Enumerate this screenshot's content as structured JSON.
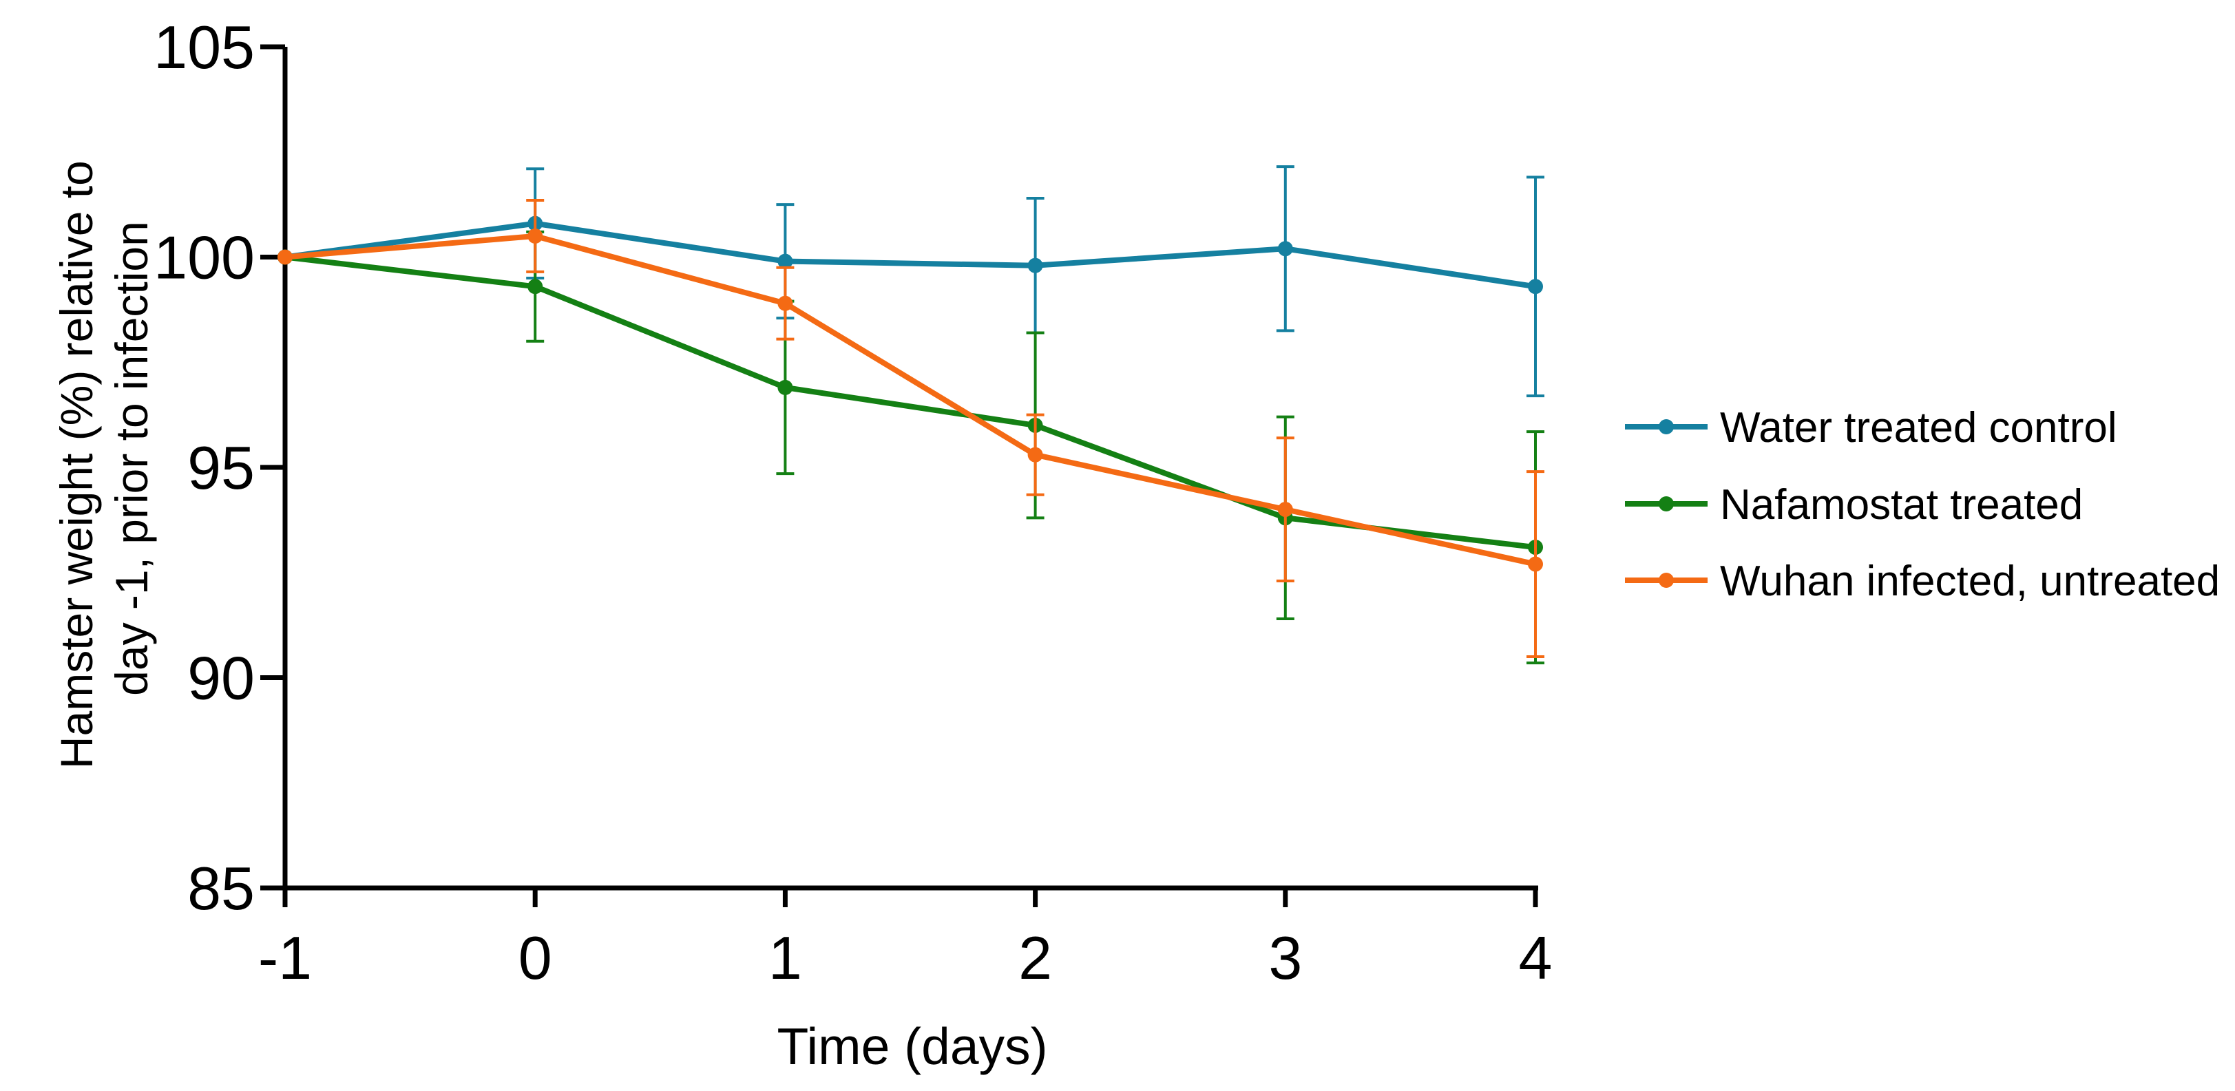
{
  "chart_data": {
    "type": "line",
    "title": "",
    "xlabel": "Time (days)",
    "ylabel_lines": [
      "Hamster weight (%) relative to",
      "day -1, prior to infection"
    ],
    "x": [
      -1,
      0,
      1,
      2,
      3,
      4
    ],
    "xlim": [
      -1,
      4
    ],
    "ylim": [
      85,
      105
    ],
    "xticks": [
      -1,
      0,
      1,
      2,
      3,
      4
    ],
    "yticks": [
      85,
      90,
      95,
      100,
      105
    ],
    "grid": false,
    "legend_position": "right",
    "series": [
      {
        "name": "Water treated control",
        "color": "#1580a0",
        "values": [
          100,
          100.8,
          99.9,
          99.8,
          100.2,
          99.3
        ],
        "errors": [
          0,
          1.3,
          1.35,
          1.6,
          1.95,
          2.6
        ]
      },
      {
        "name": "Nafamostat treated",
        "color": "#148014",
        "values": [
          100,
          99.3,
          96.9,
          96.0,
          93.8,
          93.1
        ],
        "errors": [
          0,
          1.3,
          2.05,
          2.2,
          2.4,
          2.75
        ]
      },
      {
        "name": "Wuhan infected, untreated",
        "color": "#f46a14",
        "values": [
          100,
          100.5,
          98.9,
          95.3,
          94.0,
          92.7
        ],
        "errors": [
          0,
          0.85,
          0.85,
          0.95,
          1.7,
          2.2
        ]
      }
    ]
  }
}
